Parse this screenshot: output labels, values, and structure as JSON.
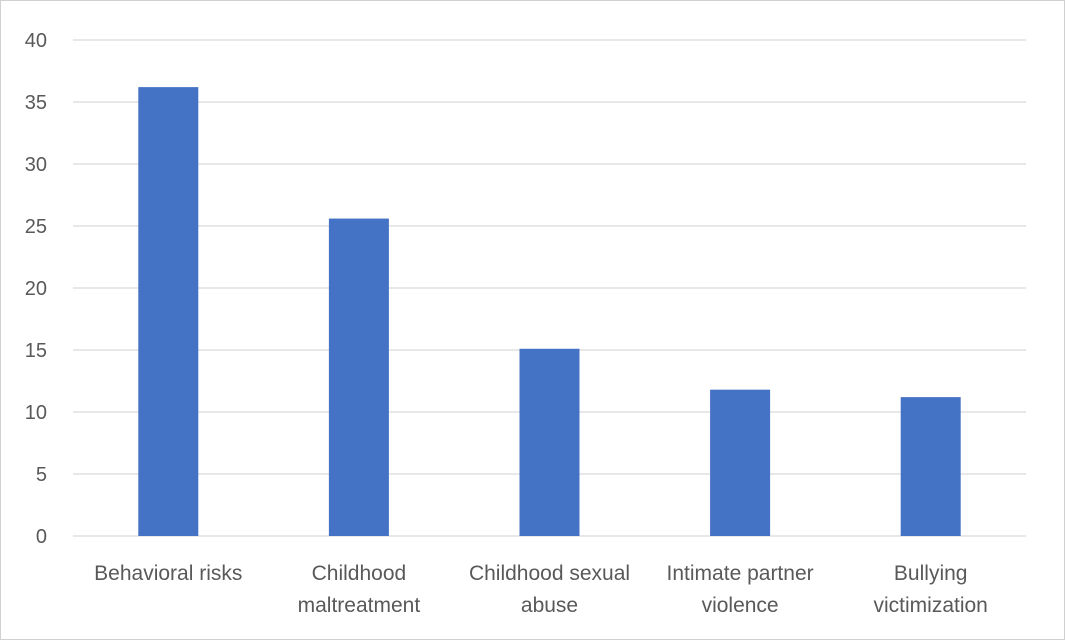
{
  "chart_data": {
    "type": "bar",
    "title": "",
    "xlabel": "",
    "ylabel": "",
    "categories": [
      [
        "Behavioral risks"
      ],
      [
        "Childhood",
        "maltreatment"
      ],
      [
        "Childhood sexual",
        "abuse"
      ],
      [
        "Intimate partner",
        "violence"
      ],
      [
        "Bullying",
        "victimization"
      ]
    ],
    "values": [
      36.2,
      25.6,
      15.1,
      11.8,
      11.2
    ],
    "ylim": [
      0,
      40
    ],
    "yticks": [
      0,
      5,
      10,
      15,
      20,
      25,
      30,
      35,
      40
    ],
    "grid": true,
    "legend": "none",
    "bar_color": "#4472c4",
    "grid_color": "#d9d9d9"
  }
}
